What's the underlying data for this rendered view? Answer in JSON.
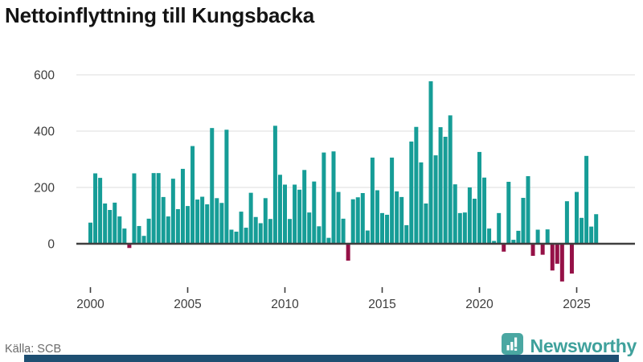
{
  "title": "Nettoinflyttning till Kungsbacka",
  "footer": {
    "source": "Källa: SCB",
    "brand": "Newsworthy"
  },
  "colors": {
    "positive_bar": "#169d97",
    "negative_bar": "#951147",
    "grid": "#e4e4e4",
    "zero_line": "#3f3f3f",
    "axis_text": "#3d3d3d",
    "brand_teal": "#3fa19c",
    "bottom_bar_navy": "#1e4f72"
  },
  "chart_data": {
    "type": "bar",
    "title": "Nettoinflyttning till Kungsbacka",
    "xlabel": "",
    "ylabel": "",
    "frequency": "quarterly",
    "start_year": 2000,
    "periods_per_year": 4,
    "x_ticks": [
      2000,
      2005,
      2010,
      2015,
      2020,
      2025
    ],
    "y_ticks": [
      0,
      200,
      400,
      600
    ],
    "ylim": [
      -150,
      640
    ],
    "grid": true,
    "legend": false,
    "values": [
      75,
      250,
      234,
      143,
      120,
      146,
      97,
      54,
      -15,
      250,
      63,
      28,
      89,
      251,
      251,
      166,
      97,
      231,
      123,
      266,
      134,
      347,
      157,
      167,
      140,
      411,
      162,
      145,
      405,
      50,
      43,
      114,
      57,
      181,
      95,
      73,
      162,
      88,
      419,
      245,
      210,
      88,
      210,
      192,
      262,
      111,
      221,
      62,
      324,
      21,
      328,
      184,
      89,
      -60,
      158,
      165,
      180,
      47,
      306,
      190,
      109,
      103,
      306,
      186,
      166,
      66,
      363,
      415,
      289,
      143,
      577,
      314,
      414,
      380,
      456,
      211,
      109,
      111,
      200,
      160,
      326,
      235,
      54,
      10,
      109,
      -28,
      220,
      14,
      46,
      163,
      240,
      -43,
      50,
      -39,
      51,
      -95,
      -71,
      -134,
      151,
      -106,
      184,
      92,
      312,
      61,
      105
    ]
  }
}
